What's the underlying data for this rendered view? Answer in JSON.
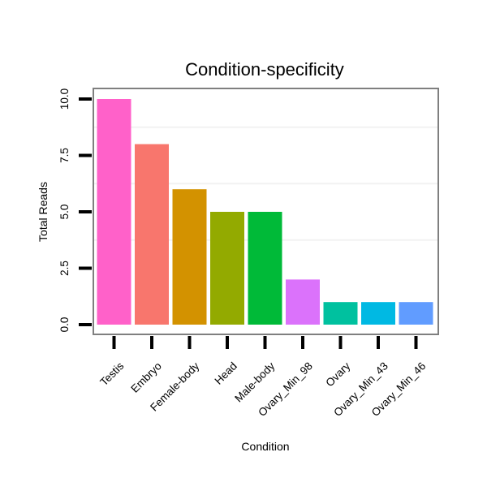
{
  "chart_data": {
    "type": "bar",
    "title": "Condition-specificity",
    "xlabel": "Condition",
    "ylabel": "Total Reads",
    "ylim": [
      0,
      10.5
    ],
    "grid": true,
    "legend": "none",
    "yticks": [
      0,
      2.5,
      5,
      7.5,
      10
    ],
    "ytick_labels": [
      "0.0",
      "2.5",
      "5.0",
      "7.5",
      "10.0"
    ],
    "categories": [
      "Testis",
      "Embryo",
      "Female-body",
      "Head",
      "Male-body",
      "Ovary_Min_98",
      "Ovary",
      "Ovary_Min_43",
      "Ovary_Min_46"
    ],
    "values": [
      10,
      8,
      6,
      5,
      5,
      2,
      1,
      1,
      1
    ],
    "colors": [
      "#FF61C9",
      "#F8766D",
      "#D39200",
      "#93AA00",
      "#00BA38",
      "#DB72FB",
      "#00C19F",
      "#00B9E3",
      "#619CFF"
    ]
  }
}
